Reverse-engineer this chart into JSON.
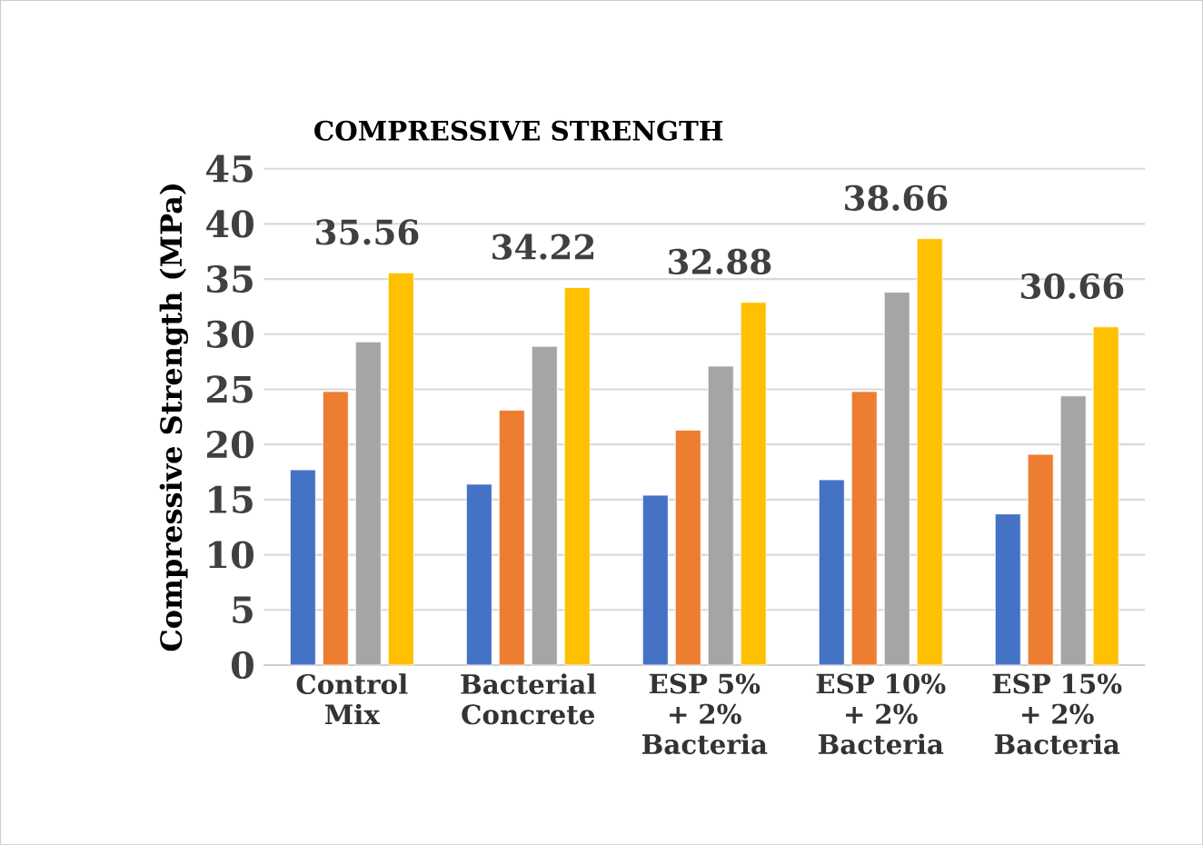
{
  "chart_data": {
    "type": "bar",
    "title": "COMPRESSIVE STRENGTH",
    "ylabel": "Compressive Strength (MPa)",
    "categories": [
      "Control Mix",
      "Bacterial Concrete",
      "ESP 5% + 2% Bacteria",
      "ESP 10% + 2% Bacteria",
      "ESP 15% + 2% Bacteria"
    ],
    "series": [
      {
        "color": "#4472c4",
        "values": [
          17.7,
          16.4,
          15.4,
          16.8,
          13.7
        ]
      },
      {
        "color": "#ed7d31",
        "values": [
          24.8,
          23.1,
          21.3,
          24.8,
          19.1
        ]
      },
      {
        "color": "#a5a5a5",
        "values": [
          29.3,
          28.9,
          27.1,
          33.8,
          24.4
        ]
      },
      {
        "color": "#ffc000",
        "values": [
          35.56,
          34.22,
          32.88,
          38.66,
          30.66
        ],
        "value_labels": [
          "35.56",
          "34.22",
          "32.88",
          "38.66",
          "30.66"
        ]
      }
    ],
    "ylim": [
      0,
      45
    ],
    "yticks": [
      0,
      5,
      10,
      15,
      20,
      25,
      30,
      35,
      40,
      45
    ],
    "grid": "y"
  }
}
